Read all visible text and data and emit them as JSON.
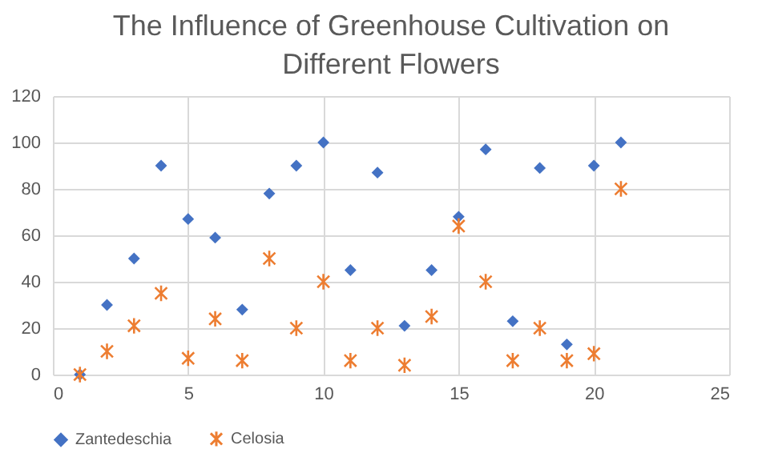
{
  "chart_data": {
    "type": "scatter",
    "title": "The Influence of Greenhouse Cultivation on Different Flowers",
    "x": [
      1,
      2,
      3,
      4,
      5,
      6,
      7,
      8,
      9,
      10,
      11,
      12,
      13,
      14,
      15,
      16,
      17,
      18,
      19,
      20,
      21
    ],
    "series": [
      {
        "name": "Zantedeschia",
        "color": "#4472c4",
        "marker": "diamond",
        "values": [
          0,
          30,
          50,
          90,
          67,
          59,
          28,
          78,
          90,
          100,
          45,
          87,
          21,
          45,
          68,
          97,
          23,
          89,
          13,
          90,
          100
        ]
      },
      {
        "name": "Celosia",
        "color": "#ed7d31",
        "marker": "cross",
        "values": [
          0,
          10,
          21,
          35,
          7,
          24,
          6,
          50,
          20,
          40,
          6,
          20,
          4,
          25,
          64,
          40,
          6,
          20,
          6,
          9,
          80
        ]
      }
    ],
    "xlim": [
      0,
      25
    ],
    "xticks": [
      0,
      5,
      10,
      15,
      20,
      25
    ],
    "ylim": [
      0,
      120
    ],
    "yticks": [
      0,
      20,
      40,
      60,
      80,
      100,
      120
    ],
    "grid": true,
    "legend": "bottom"
  }
}
